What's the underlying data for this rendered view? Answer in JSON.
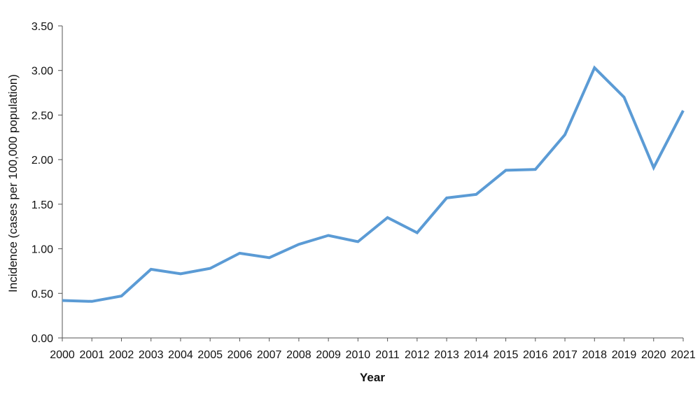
{
  "chart_data": {
    "type": "line",
    "title": "",
    "xlabel": "Year",
    "ylabel": "Incidence (cases per 100,000 population)",
    "x": [
      "2000",
      "2001",
      "2002",
      "2003",
      "2004",
      "2005",
      "2006",
      "2007",
      "2008",
      "2009",
      "2010",
      "2011",
      "2012",
      "2013",
      "2014",
      "2015",
      "2016",
      "2017",
      "2018",
      "2019",
      "2020",
      "2021"
    ],
    "series": [
      {
        "color": "#5b9bd5",
        "values": [
          0.42,
          0.41,
          0.47,
          0.77,
          0.72,
          0.78,
          0.95,
          0.9,
          1.05,
          1.15,
          1.08,
          1.35,
          1.18,
          1.57,
          1.61,
          1.88,
          1.89,
          2.28,
          3.03,
          2.7,
          1.91,
          2.55
        ]
      }
    ],
    "ylim": [
      0,
      3.5
    ],
    "yticks": [
      "0.00",
      "0.50",
      "1.00",
      "1.50",
      "2.00",
      "2.50",
      "3.00",
      "3.50"
    ],
    "grid": false,
    "legend": "none"
  }
}
